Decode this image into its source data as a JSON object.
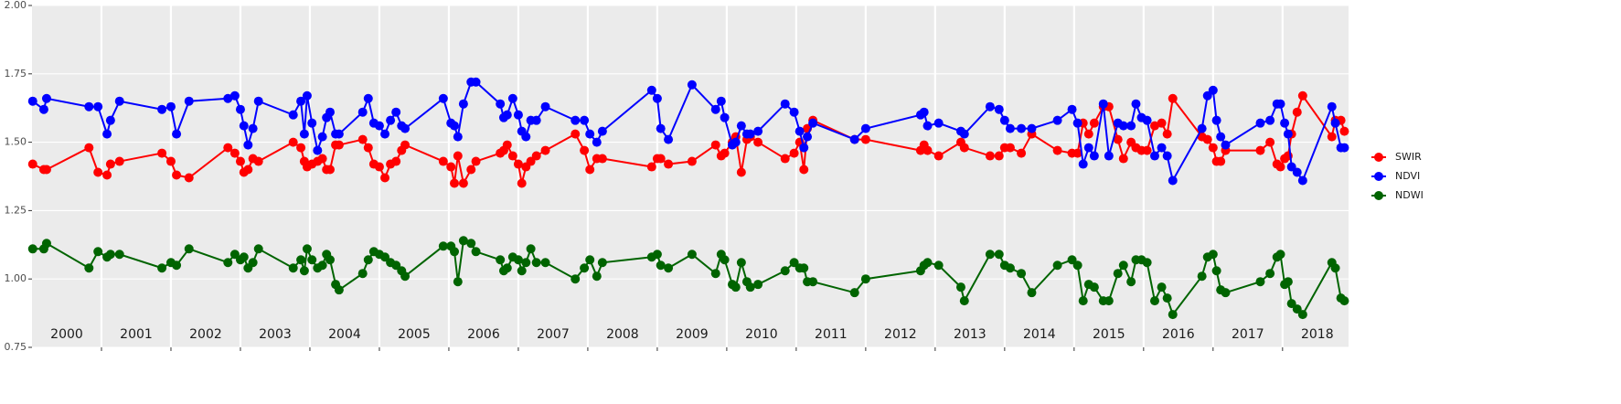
{
  "chart_data": {
    "type": "line",
    "x": [
      2000.01,
      2000.17,
      2000.21,
      2000.82,
      2000.95,
      2001.08,
      2001.13,
      2001.26,
      2001.87,
      2002.0,
      2002.08,
      2002.26,
      2002.82,
      2002.92,
      2003.0,
      2003.05,
      2003.11,
      2003.18,
      2003.26,
      2003.76,
      2003.87,
      2003.92,
      2003.96,
      2004.03,
      2004.11,
      2004.18,
      2004.24,
      2004.29,
      2004.37,
      2004.42,
      2004.76,
      2004.84,
      2004.92,
      2005.0,
      2005.08,
      2005.16,
      2005.24,
      2005.32,
      2005.37,
      2005.92,
      2006.03,
      2006.08,
      2006.13,
      2006.21,
      2006.32,
      2006.39,
      2006.74,
      2006.79,
      2006.84,
      2006.92,
      2007.0,
      2007.05,
      2007.11,
      2007.18,
      2007.26,
      2007.39,
      2007.82,
      2007.95,
      2008.03,
      2008.13,
      2008.21,
      2008.92,
      2009.0,
      2009.05,
      2009.16,
      2009.5,
      2009.84,
      2009.92,
      2009.97,
      2010.08,
      2010.13,
      2010.21,
      2010.29,
      2010.34,
      2010.45,
      2010.84,
      2010.97,
      2011.05,
      2011.11,
      2011.16,
      2011.24,
      2011.84,
      2012.0,
      2012.79,
      2012.84,
      2012.89,
      2013.05,
      2013.37,
      2013.42,
      2013.79,
      2013.92,
      2014.0,
      2014.08,
      2014.24,
      2014.39,
      2014.76,
      2014.97,
      2015.05,
      2015.13,
      2015.21,
      2015.29,
      2015.42,
      2015.5,
      2015.63,
      2015.71,
      2015.82,
      2015.89,
      2015.97,
      2016.05,
      2016.16,
      2016.26,
      2016.34,
      2016.42,
      2016.84,
      2016.92,
      2017.0,
      2017.05,
      2017.11,
      2017.18,
      2017.68,
      2017.82,
      2017.92,
      2017.97,
      2018.03,
      2018.08,
      2018.13,
      2018.21,
      2018.29,
      2018.71,
      2018.76,
      2018.84,
      2018.89
    ],
    "series": [
      {
        "name": "SWIR",
        "color": "#ff0000",
        "values": [
          1.42,
          1.4,
          1.4,
          1.48,
          1.39,
          1.38,
          1.42,
          1.43,
          1.46,
          1.43,
          1.38,
          1.37,
          1.48,
          1.46,
          1.43,
          1.39,
          1.4,
          1.44,
          1.43,
          1.5,
          1.48,
          1.43,
          1.41,
          1.42,
          1.43,
          1.44,
          1.4,
          1.4,
          1.49,
          1.49,
          1.51,
          1.48,
          1.42,
          1.41,
          1.37,
          1.42,
          1.43,
          1.47,
          1.49,
          1.43,
          1.41,
          1.35,
          1.45,
          1.35,
          1.4,
          1.43,
          1.46,
          1.47,
          1.49,
          1.45,
          1.42,
          1.35,
          1.41,
          1.43,
          1.45,
          1.47,
          1.53,
          1.47,
          1.4,
          1.44,
          1.44,
          1.41,
          1.44,
          1.44,
          1.42,
          1.43,
          1.49,
          1.45,
          1.46,
          1.5,
          1.52,
          1.39,
          1.51,
          1.52,
          1.5,
          1.44,
          1.46,
          1.5,
          1.4,
          1.55,
          1.58,
          1.51,
          1.51,
          1.47,
          1.49,
          1.47,
          1.45,
          1.5,
          1.48,
          1.45,
          1.45,
          1.48,
          1.48,
          1.46,
          1.53,
          1.47,
          1.46,
          1.46,
          1.57,
          1.53,
          1.57,
          1.63,
          1.63,
          1.51,
          1.44,
          1.5,
          1.48,
          1.47,
          1.47,
          1.56,
          1.57,
          1.53,
          1.66,
          1.52,
          1.51,
          1.48,
          1.43,
          1.43,
          1.47,
          1.47,
          1.5,
          1.42,
          1.41,
          1.44,
          1.45,
          1.53,
          1.61,
          1.67,
          1.52,
          1.58,
          1.58,
          1.54
        ]
      },
      {
        "name": "NDVI",
        "color": "#0000ff",
        "values": [
          1.65,
          1.62,
          1.66,
          1.63,
          1.63,
          1.53,
          1.58,
          1.65,
          1.62,
          1.63,
          1.53,
          1.65,
          1.66,
          1.67,
          1.62,
          1.56,
          1.49,
          1.55,
          1.65,
          1.6,
          1.65,
          1.53,
          1.67,
          1.57,
          1.47,
          1.52,
          1.59,
          1.61,
          1.53,
          1.53,
          1.61,
          1.66,
          1.57,
          1.56,
          1.53,
          1.58,
          1.61,
          1.56,
          1.55,
          1.66,
          1.57,
          1.56,
          1.52,
          1.64,
          1.72,
          1.72,
          1.64,
          1.59,
          1.6,
          1.66,
          1.6,
          1.54,
          1.52,
          1.58,
          1.58,
          1.63,
          1.58,
          1.58,
          1.53,
          1.5,
          1.54,
          1.69,
          1.66,
          1.55,
          1.51,
          1.71,
          1.62,
          1.65,
          1.59,
          1.49,
          1.5,
          1.56,
          1.53,
          1.53,
          1.54,
          1.64,
          1.61,
          1.54,
          1.48,
          1.52,
          1.57,
          1.51,
          1.55,
          1.6,
          1.61,
          1.56,
          1.57,
          1.54,
          1.53,
          1.63,
          1.62,
          1.58,
          1.55,
          1.55,
          1.55,
          1.58,
          1.62,
          1.57,
          1.42,
          1.48,
          1.45,
          1.64,
          1.45,
          1.57,
          1.56,
          1.56,
          1.64,
          1.59,
          1.58,
          1.45,
          1.48,
          1.45,
          1.36,
          1.55,
          1.67,
          1.69,
          1.58,
          1.52,
          1.49,
          1.57,
          1.58,
          1.64,
          1.64,
          1.57,
          1.53,
          1.41,
          1.39,
          1.36,
          1.63,
          1.57,
          1.48,
          1.48
        ]
      },
      {
        "name": "NDWI",
        "color": "#006400",
        "values": [
          1.11,
          1.11,
          1.13,
          1.04,
          1.1,
          1.08,
          1.09,
          1.09,
          1.04,
          1.06,
          1.05,
          1.11,
          1.06,
          1.09,
          1.07,
          1.08,
          1.04,
          1.06,
          1.11,
          1.04,
          1.07,
          1.03,
          1.11,
          1.07,
          1.04,
          1.05,
          1.09,
          1.07,
          0.98,
          0.96,
          1.02,
          1.07,
          1.1,
          1.09,
          1.08,
          1.06,
          1.05,
          1.03,
          1.01,
          1.12,
          1.12,
          1.1,
          0.99,
          1.14,
          1.13,
          1.1,
          1.07,
          1.03,
          1.04,
          1.08,
          1.07,
          1.03,
          1.06,
          1.11,
          1.06,
          1.06,
          1.0,
          1.04,
          1.07,
          1.01,
          1.06,
          1.08,
          1.09,
          1.05,
          1.04,
          1.09,
          1.02,
          1.09,
          1.07,
          0.98,
          0.97,
          1.06,
          0.99,
          0.97,
          0.98,
          1.03,
          1.06,
          1.04,
          1.04,
          0.99,
          0.99,
          0.95,
          1.0,
          1.03,
          1.05,
          1.06,
          1.05,
          0.97,
          0.92,
          1.09,
          1.09,
          1.05,
          1.04,
          1.02,
          0.95,
          1.05,
          1.07,
          1.05,
          0.92,
          0.98,
          0.97,
          0.92,
          0.92,
          1.02,
          1.05,
          0.99,
          1.07,
          1.07,
          1.06,
          0.92,
          0.97,
          0.93,
          0.87,
          1.01,
          1.08,
          1.09,
          1.03,
          0.96,
          0.95,
          0.99,
          1.02,
          1.08,
          1.09,
          0.98,
          0.99,
          0.91,
          0.89,
          0.87,
          1.06,
          1.04,
          0.93,
          0.92
        ]
      }
    ],
    "xlim": [
      2000,
      2018.95
    ],
    "xticks": [
      2001,
      2002,
      2003,
      2004,
      2005,
      2006,
      2007,
      2008,
      2009,
      2010,
      2011,
      2012,
      2013,
      2014,
      2015,
      2016,
      2017,
      2018
    ],
    "year_labels": [
      "2000",
      "2001",
      "2002",
      "2003",
      "2004",
      "2005",
      "2006",
      "2007",
      "2008",
      "2009",
      "2010",
      "2011",
      "2012",
      "2013",
      "2014",
      "2015",
      "2016",
      "2017",
      "2018"
    ],
    "ylim": [
      0.75,
      2.0
    ],
    "yticks": [
      0.75,
      {
        "value": 1,
        "label": "1.00"
      },
      1.25,
      {
        "value": 1.5,
        "label": "1.50"
      },
      1.75,
      {
        "value": 2,
        "label": "2.00"
      }
    ],
    "grid": true,
    "legend": "right"
  }
}
